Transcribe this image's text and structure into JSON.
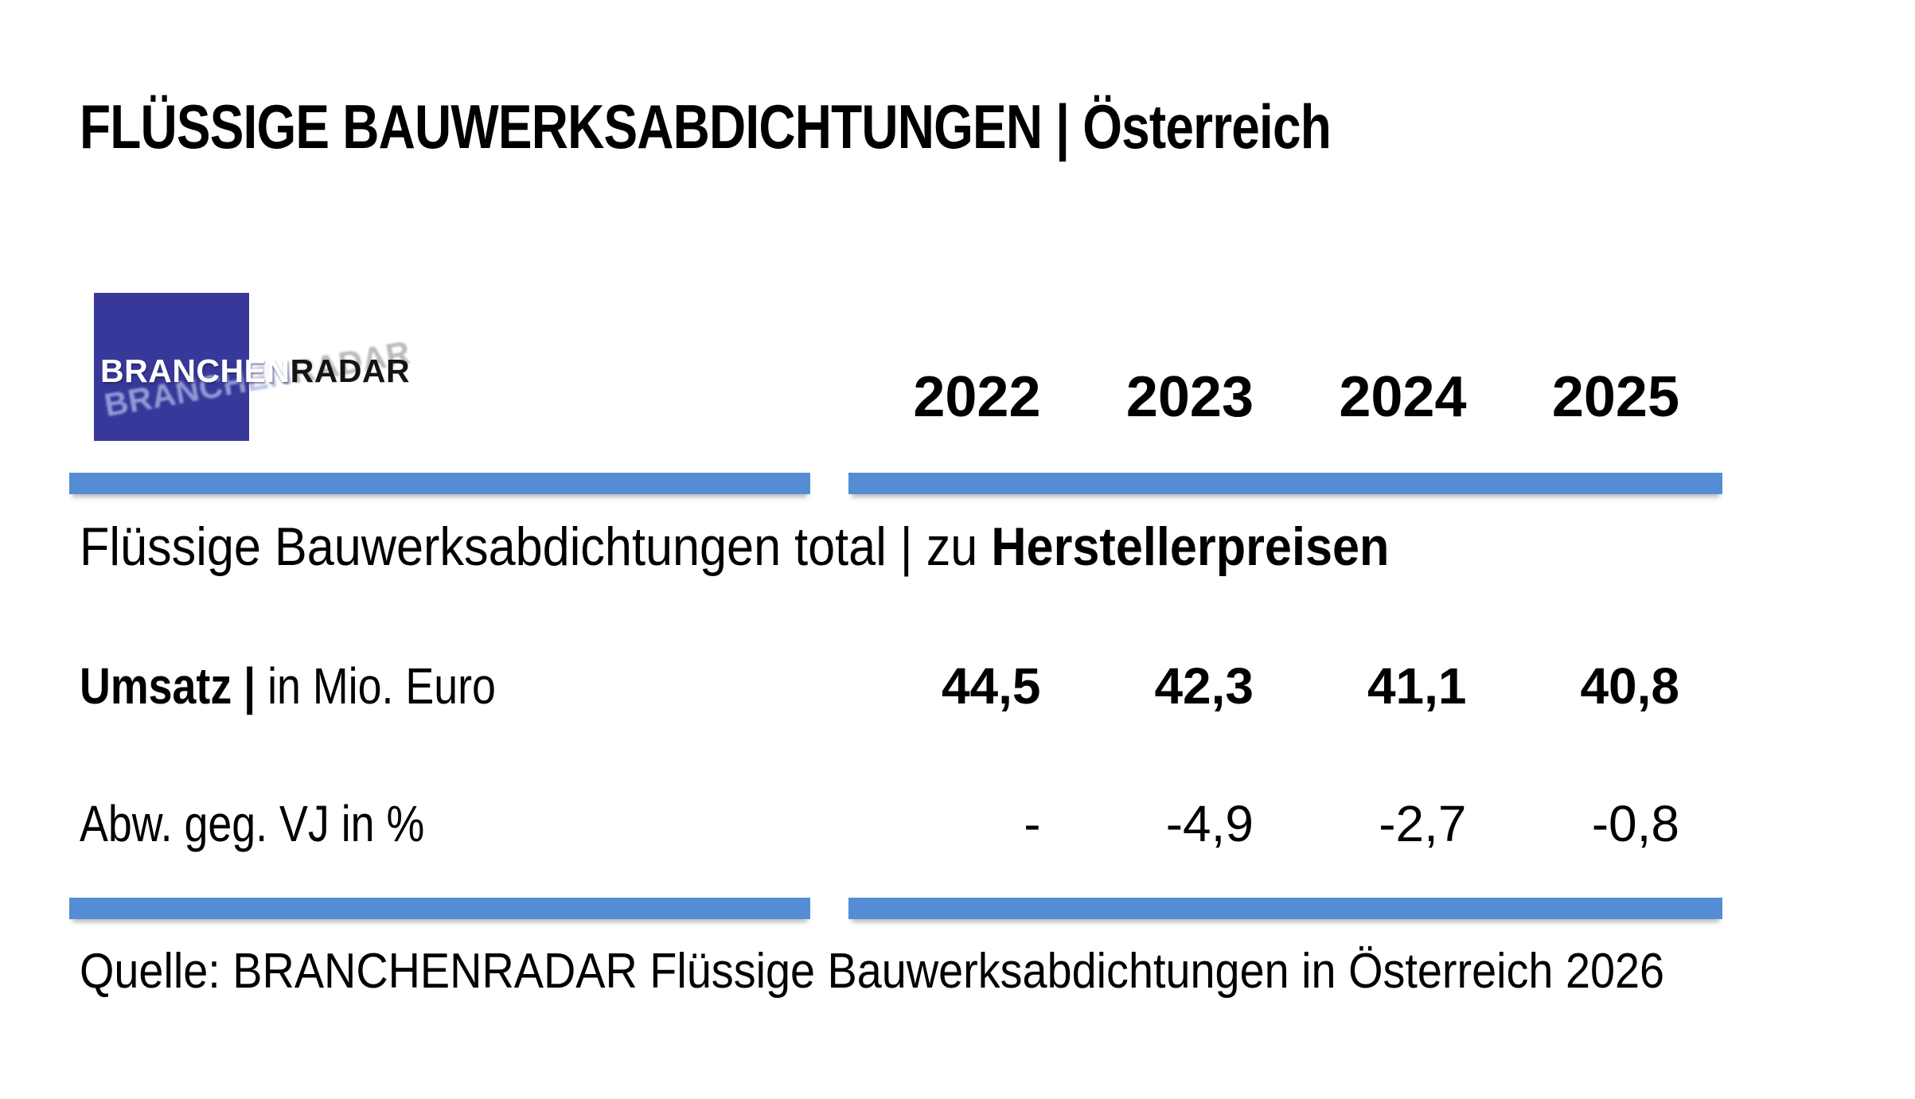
{
  "page": {
    "title": "FLÜSSIGE BAUWERKSABDICHTUNGEN | Österreich",
    "background_color": "#FFFFFF"
  },
  "logo": {
    "text_primary": "BRANCHEN",
    "text_secondary": "RADAR",
    "square_color": "#38389B"
  },
  "table": {
    "divider_color": "#548DD4",
    "years": [
      "2022",
      "2023",
      "2024",
      "2025"
    ],
    "section_label": {
      "text": "Flüssige Bauwerksabdichtungen total | zu ",
      "bold_text": "Herstellerpreisen"
    },
    "rows": [
      {
        "label_bold": "Umsatz |",
        "label": " in Mio. Euro",
        "values": [
          "44,5",
          "42,3",
          "41,1",
          "40,8"
        ]
      },
      {
        "label_bold": "",
        "label": "Abw. geg. VJ in %",
        "values": [
          "-",
          "-4,9",
          "-2,7",
          "-0,8"
        ]
      }
    ]
  },
  "source": {
    "text": "Quelle: BRANCHENRADAR Flüssige Bauwerksabdichtungen in Österreich 2026"
  },
  "chart_data": {
    "type": "table",
    "title": "FLÜSSIGE BAUWERKSABDICHTUNGEN | Österreich",
    "section": "Flüssige Bauwerksabdichtungen total | zu Herstellerpreisen",
    "categories": [
      "2022",
      "2023",
      "2024",
      "2025"
    ],
    "series": [
      {
        "name": "Umsatz | in Mio. Euro",
        "values": [
          44.5,
          42.3,
          41.1,
          40.8
        ]
      },
      {
        "name": "Abw. geg. VJ in %",
        "values": [
          null,
          -4.9,
          -2.7,
          -0.8
        ]
      }
    ],
    "source": "Quelle: BRANCHENRADAR Flüssige Bauwerksabdichtungen in Österreich 2026"
  }
}
